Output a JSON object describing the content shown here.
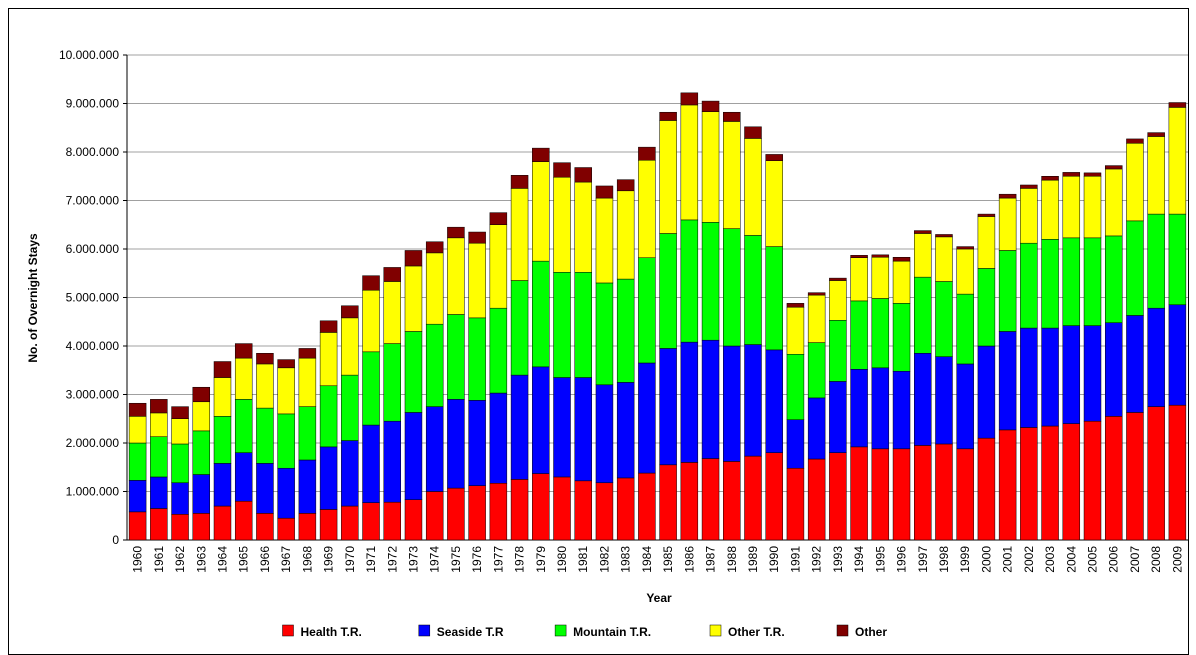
{
  "chart_data": {
    "type": "stacked_bar",
    "x_label": "Year",
    "y_label": "No. of Overnight Stays",
    "categories": [
      "1960",
      "1961",
      "1962",
      "1963",
      "1964",
      "1965",
      "1966",
      "1967",
      "1968",
      "1969",
      "1970",
      "1971",
      "1972",
      "1973",
      "1974",
      "1975",
      "1976",
      "1977",
      "1978",
      "1979",
      "1980",
      "1981",
      "1982",
      "1983",
      "1984",
      "1985",
      "1986",
      "1987",
      "1988",
      "1989",
      "1990",
      "1991",
      "1992",
      "1993",
      "1994",
      "1995",
      "1996",
      "1997",
      "1998",
      "1999",
      "2000",
      "2001",
      "2002",
      "2003",
      "2004",
      "2005",
      "2006",
      "2007",
      "2008",
      "2009"
    ],
    "series": [
      {
        "name": "Health T.R.",
        "color": "#ff0000",
        "values": [
          580000,
          650000,
          530000,
          550000,
          700000,
          800000,
          550000,
          450000,
          550000,
          630000,
          700000,
          770000,
          780000,
          830000,
          1000000,
          1070000,
          1120000,
          1170000,
          1250000,
          1370000,
          1300000,
          1220000,
          1180000,
          1280000,
          1380000,
          1550000,
          1600000,
          1680000,
          1620000,
          1730000,
          1800000,
          1480000,
          1670000,
          1800000,
          1920000,
          1880000,
          1880000,
          1950000,
          1980000,
          1880000,
          2100000,
          2270000,
          2320000,
          2350000,
          2400000,
          2450000,
          2550000,
          2630000,
          2750000,
          2780000
        ]
      },
      {
        "name": "Seaside T.R",
        "color": "#0000ff",
        "values": [
          650000,
          650000,
          650000,
          800000,
          880000,
          1000000,
          1030000,
          1030000,
          1100000,
          1290000,
          1350000,
          1600000,
          1670000,
          1800000,
          1750000,
          1830000,
          1760000,
          1860000,
          2150000,
          2200000,
          2050000,
          2130000,
          2020000,
          1970000,
          2270000,
          2400000,
          2480000,
          2440000,
          2380000,
          2300000,
          2120000,
          1000000,
          1260000,
          1470000,
          1600000,
          1670000,
          1600000,
          1900000,
          1800000,
          1750000,
          1900000,
          2030000,
          2050000,
          2020000,
          2020000,
          1970000,
          1930000,
          2000000,
          2030000,
          2070000
        ]
      },
      {
        "name": "Mountain T.R.",
        "color": "#00ff00",
        "values": [
          770000,
          830000,
          800000,
          900000,
          970000,
          1100000,
          1140000,
          1120000,
          1100000,
          1260000,
          1350000,
          1510000,
          1600000,
          1670000,
          1700000,
          1750000,
          1700000,
          1750000,
          1950000,
          2180000,
          2170000,
          2170000,
          2100000,
          2130000,
          2170000,
          2370000,
          2520000,
          2430000,
          2420000,
          2250000,
          2130000,
          1350000,
          1140000,
          1260000,
          1410000,
          1430000,
          1400000,
          1570000,
          1550000,
          1440000,
          1600000,
          1670000,
          1750000,
          1830000,
          1810000,
          1810000,
          1790000,
          1950000,
          1940000,
          1870000
        ]
      },
      {
        "name": "Other T.R.",
        "color": "#ffff00",
        "values": [
          550000,
          490000,
          520000,
          600000,
          800000,
          850000,
          910000,
          950000,
          1000000,
          1100000,
          1180000,
          1270000,
          1280000,
          1350000,
          1470000,
          1580000,
          1540000,
          1720000,
          1900000,
          2050000,
          1960000,
          1860000,
          1750000,
          1820000,
          2010000,
          2330000,
          2370000,
          2280000,
          2210000,
          2000000,
          1770000,
          970000,
          980000,
          820000,
          890000,
          850000,
          870000,
          900000,
          920000,
          930000,
          1070000,
          1080000,
          1130000,
          1220000,
          1270000,
          1270000,
          1380000,
          1600000,
          1600000,
          2200000
        ]
      },
      {
        "name": "Other",
        "color": "#800000",
        "values": [
          270000,
          280000,
          250000,
          300000,
          330000,
          300000,
          220000,
          170000,
          200000,
          240000,
          250000,
          300000,
          290000,
          320000,
          230000,
          220000,
          230000,
          250000,
          270000,
          280000,
          300000,
          300000,
          250000,
          230000,
          270000,
          170000,
          250000,
          220000,
          190000,
          240000,
          130000,
          80000,
          50000,
          50000,
          50000,
          50000,
          80000,
          60000,
          50000,
          50000,
          50000,
          80000,
          70000,
          80000,
          80000,
          70000,
          70000,
          90000,
          80000,
          100000
        ]
      }
    ],
    "ylim": [
      0,
      10000000
    ],
    "yticks": [
      0,
      {
        "value": 1000000,
        "label": "1.000.000"
      },
      {
        "value": 2000000,
        "label": "2.000.000"
      },
      {
        "value": 3000000,
        "label": "3.000.000"
      },
      {
        "value": 4000000,
        "label": "4.000.000"
      },
      {
        "value": 5000000,
        "label": "5.000.000"
      },
      {
        "value": 6000000,
        "label": "6.000.000"
      },
      {
        "value": 7000000,
        "label": "7.000.000"
      },
      {
        "value": 8000000,
        "label": "8.000.000"
      },
      {
        "value": 9000000,
        "label": "9.000.000"
      },
      {
        "value": 10000000,
        "label": "10.000.000"
      }
    ],
    "grid": true,
    "legend": "bottom"
  }
}
